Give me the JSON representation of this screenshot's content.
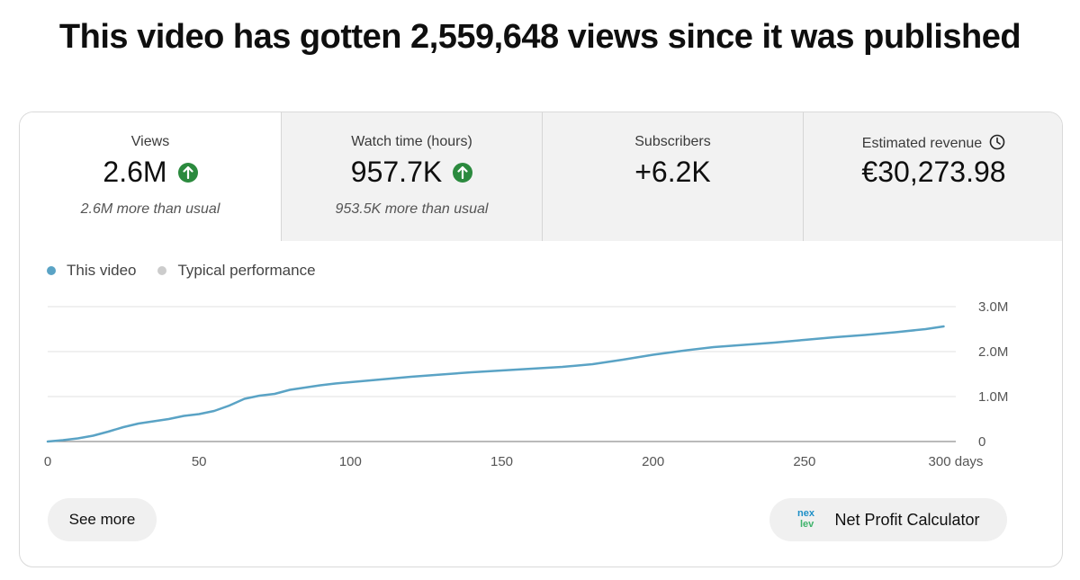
{
  "headline": "This video has gotten 2,559,648 views since it was published",
  "metrics": [
    {
      "label": "Views",
      "value": "2.6M",
      "sub": "2.6M more than usual",
      "trend": "up"
    },
    {
      "label": "Watch time (hours)",
      "value": "957.7K",
      "sub": "953.5K more than usual",
      "trend": "up"
    },
    {
      "label": "Subscribers",
      "value": "+6.2K",
      "sub": "",
      "trend": "none"
    },
    {
      "label": "Estimated revenue",
      "value": "€30,273.98",
      "sub": "",
      "trend": "none"
    }
  ],
  "legend": [
    {
      "label": "This video",
      "color": "#5aa3c5"
    },
    {
      "label": "Typical performance",
      "color": "#cccccc"
    }
  ],
  "buttons": {
    "see_more": "See more",
    "net_profit": "Net Profit Calculator"
  },
  "colors": {
    "line": "#5aa3c5",
    "up_badge": "#2b8a3e"
  },
  "chart_data": {
    "type": "line",
    "x_tick_labels": [
      "0",
      "50",
      "100",
      "150",
      "200",
      "250",
      "300 days"
    ],
    "x_ticks": [
      0,
      50,
      100,
      150,
      200,
      250,
      300
    ],
    "y_tick_labels": [
      "0",
      "1.0M",
      "2.0M",
      "3.0M"
    ],
    "y_ticks": [
      0,
      1000000,
      2000000,
      3000000
    ],
    "xlim": [
      0,
      300
    ],
    "ylim": [
      0,
      3000000
    ],
    "grid": true,
    "legend_position": "top-left",
    "series": [
      {
        "name": "This video",
        "x": [
          0,
          5,
          10,
          15,
          20,
          25,
          30,
          35,
          40,
          45,
          50,
          55,
          60,
          65,
          70,
          75,
          80,
          85,
          90,
          95,
          100,
          110,
          120,
          130,
          140,
          150,
          160,
          170,
          180,
          190,
          200,
          210,
          220,
          230,
          240,
          250,
          260,
          270,
          280,
          290,
          296
        ],
        "y": [
          0,
          30000,
          70000,
          130000,
          220000,
          320000,
          400000,
          450000,
          500000,
          570000,
          610000,
          680000,
          800000,
          950000,
          1020000,
          1060000,
          1150000,
          1200000,
          1250000,
          1290000,
          1320000,
          1380000,
          1440000,
          1490000,
          1540000,
          1580000,
          1620000,
          1660000,
          1720000,
          1820000,
          1930000,
          2020000,
          2100000,
          2150000,
          2200000,
          2260000,
          2320000,
          2370000,
          2430000,
          2500000,
          2560000
        ]
      }
    ]
  }
}
